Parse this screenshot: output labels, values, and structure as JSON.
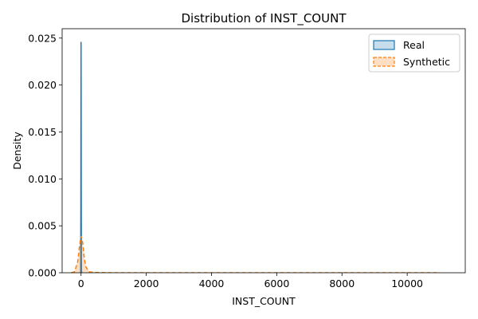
{
  "chart_data": {
    "type": "area",
    "title": "Distribution of INST_COUNT",
    "xlabel": "INST_COUNT",
    "ylabel": "Density",
    "xlim": [
      -580,
      11780
    ],
    "ylim": [
      0,
      0.026
    ],
    "xticks": [
      0,
      2000,
      4000,
      6000,
      8000,
      10000
    ],
    "yticks": [
      0.0,
      0.005,
      0.01,
      0.015,
      0.02,
      0.025
    ],
    "ytick_labels": [
      "0.000",
      "0.005",
      "0.010",
      "0.015",
      "0.020",
      "0.025"
    ],
    "xtick_labels": [
      "0",
      "2000",
      "4000",
      "6000",
      "8000",
      "10000"
    ],
    "grid": false,
    "legend_position": "top-right",
    "series": [
      {
        "name": "Real",
        "color": "#1f77b4",
        "fill_color": "#1f77b4",
        "line_style": "solid",
        "x": [
          -14,
          -10,
          -6,
          -3,
          0,
          3,
          6,
          10,
          14,
          20,
          30
        ],
        "y": [
          0.0,
          0.0015,
          0.008,
          0.018,
          0.0246,
          0.018,
          0.008,
          0.0015,
          0.0002,
          0.0,
          0.0
        ]
      },
      {
        "name": "Synthetic",
        "color": "#ff7f0e",
        "fill_color": "#ff7f0e",
        "line_style": "dashed",
        "x": [
          -300,
          -200,
          -100,
          -50,
          0,
          50,
          100,
          150,
          250,
          400,
          1000,
          3000,
          6000,
          9000,
          11000
        ],
        "y": [
          0.0,
          0.0001,
          0.0012,
          0.0028,
          0.0039,
          0.0032,
          0.0015,
          0.0006,
          0.0001,
          3e-05,
          0.0,
          0.0,
          0.0,
          0.0,
          0.0
        ]
      }
    ]
  }
}
